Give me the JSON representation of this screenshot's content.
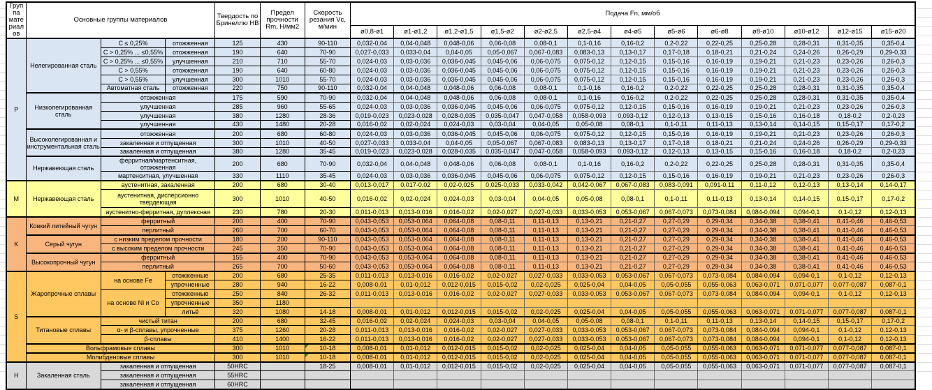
{
  "header": {
    "group": "Группа материалов",
    "materials": "Основные группы материалов",
    "hb": "Твердость по Бринеллю HB",
    "rm": "Предел прочности Rm, Н/мм2",
    "vc": "Скорость резания Vc, м/мин",
    "feed": "Подача Fn, мм/об",
    "feed_cols": [
      "ø0,8-ø1",
      "ø1-ø1,2",
      "ø1,2-ø1,5",
      "ø1,5-ø2",
      "ø2-ø2,5",
      "ø2,5-ø4",
      "ø4-ø5",
      "ø5-ø6",
      "ø6-ø8",
      "ø8-ø10",
      "ø10-ø12",
      "ø12-ø15",
      "ø15-ø20"
    ]
  },
  "colors": {
    "P": "#d9e5f2",
    "M": "#ffff9b",
    "K": "#f8b57e",
    "S": "#ffc75f",
    "H": "#d9d9d9",
    "flag_green": "#2e8b2e"
  },
  "feed_templates": {
    "A": [
      "0,032-0,04",
      "0,04-0,048",
      "0,048-0,06",
      "0,06-0,08",
      "0,08-0,1",
      "0,1-0,16",
      "0,16-0,2",
      "0,2-0,22",
      "0,22-0,25",
      "0,25-0,28",
      "0,28-0,31",
      "0,31-0,35",
      "0,35-0,4"
    ],
    "B": [
      "0,027-0,033",
      "0,033-0,04",
      "0,04-0,05",
      "0,05-0,067",
      "0,067-0,083",
      "0,083-0,13",
      "0,13-0,17",
      "0,17-0,18",
      "0,18-0,21",
      "0,21-0,24",
      "0,24-0,26",
      "0,26-0,29",
      "0,29-0,33"
    ],
    "C": [
      "0,024-0,03",
      "0,03-0,036",
      "0,036-0,045",
      "0,045-0,06",
      "0,06-0,075",
      "0,075-0,12",
      "0,12-0,15",
      "0,15-0,16",
      "0,16-0,19",
      "0,19-0,21",
      "0,21-0,23",
      "0,23-0,26",
      "0,26-0,3"
    ],
    "D": [
      "0,019-0,023",
      "0,023-0,028",
      "0,028-0,035",
      "0,035-0,047",
      "0,047-0,058",
      "0,058-0,093",
      "0,093-0,12",
      "0,12-0,13",
      "0,13-0,15",
      "0,15-0,16",
      "0,16-0,18",
      "0,18-0,2",
      "0,2-0,23"
    ],
    "E": [
      "0,016-0,02",
      "0,02-0,024",
      "0,024-0,03",
      "0,03-0,04",
      "0,04-0,05",
      "0,05-0,08",
      "0,08-0,1",
      "0,1-0,11",
      "0,11-0,13",
      "0,13-0,14",
      "0,14-0,15",
      "0,15-0,17",
      "0,17-0,2"
    ],
    "F": [
      "0,013-0,017",
      "0,017-0,02",
      "0,02-0,025",
      "0,025-0,033",
      "0,033-0,042",
      "0,042-0,067",
      "0,067-0,083",
      "0,083-0,091",
      "0,091-0,11",
      "0,11-0,12",
      "0,12-0,13",
      "0,13-0,14",
      "0,14-0,17"
    ],
    "G": [
      "0,011-0,013",
      "0,013-0,016",
      "0,016-0,02",
      "0,02-0,027",
      "0,027-0,033",
      "0,033-0,053",
      "0,053-0,067",
      "0,067-0,073",
      "0,073-0,084",
      "0,084-0,094",
      "0,094-0,1",
      "0,1-0,12",
      "0,12-0,13"
    ],
    "H": [
      "0,043-0,053",
      "0,053-0,064",
      "0,064-0,08",
      "0,08-0,11",
      "0,11-0,13",
      "0,13-0,21",
      "0,21-0,27",
      "0,27-0,29",
      "0,29-0,34",
      "0,34-0,38",
      "0,38-0,41",
      "0,41-0,46",
      "0,46-0,53"
    ],
    "I": [
      "0,008-0,01",
      "0,01-0,012",
      "0,012-0,015",
      "0,015-0,02",
      "0,02-0,025",
      "0,025-0,04",
      "0,04-0,05",
      "0,05-0,055",
      "0,055-0,063",
      "0,063-0,071",
      "0,071-0,077",
      "0,077-0,087",
      "0,087-0,1"
    ],
    "EMPTY": [
      "",
      "",
      "",
      "",
      "",
      "",
      "",
      "",
      "",
      "",
      "",
      "",
      ""
    ]
  },
  "sections": [
    {
      "id": "P",
      "rows": [
        {
          "labels": [
            [
              "Нелегированная сталь",
              "mat",
              6
            ],
            [
              "C ≤ 0,25%",
              "sub",
              1
            ],
            [
              "отожженная",
              "state",
              1
            ]
          ],
          "hb": "125",
          "rm": "430",
          "vc": "90-110",
          "feed": "A"
        },
        {
          "labels": [
            [
              "C > 0,25% ... ≤0,55%",
              "sub",
              1
            ],
            [
              "отожженная",
              "state",
              1
            ]
          ],
          "hb": "190",
          "rm": "640",
          "vc": "70-90",
          "feed": "B"
        },
        {
          "labels": [
            [
              "C > 0,25% ... ≤0,55%",
              "sub",
              1
            ],
            [
              "улучшенная",
              "state",
              1
            ]
          ],
          "hb": "210",
          "rm": "710",
          "vc": "55-70",
          "feed": "C"
        },
        {
          "labels": [
            [
              "C > 0,55%",
              "sub",
              1
            ],
            [
              "отожженная",
              "state",
              1
            ]
          ],
          "hb": "190",
          "rm": "640",
          "vc": "60-80",
          "feed": "C"
        },
        {
          "labels": [
            [
              "C > 0,55%",
              "sub",
              1
            ],
            [
              "улучшенная",
              "state",
              1
            ]
          ],
          "hb": "300",
          "rm": "1010",
          "vc": "55-70",
          "feed": "C"
        },
        {
          "labels": [
            [
              "Автоматная сталь",
              "sub",
              1
            ],
            [
              "отожженная",
              "state",
              1
            ]
          ],
          "hb": "220",
          "rm": "750",
          "vc": "90-110",
          "feed": "A"
        },
        {
          "labels": [
            [
              "Низколегированная сталь",
              "mat",
              4
            ],
            [
              "отожженная",
              "wide",
              1
            ]
          ],
          "hb": "175",
          "rm": "590",
          "vc": "70-90",
          "feed": "A"
        },
        {
          "labels": [
            [
              "улучшенная",
              "wide",
              1
            ]
          ],
          "hb": "285",
          "rm": "960",
          "vc": "55-65",
          "feed": "C"
        },
        {
          "labels": [
            [
              "улучшенная",
              "wide",
              1
            ]
          ],
          "hb": "380",
          "rm": "1280",
          "vc": "28-36",
          "feed": "D"
        },
        {
          "labels": [
            [
              "улучшенная",
              "wide",
              1
            ]
          ],
          "hb": "430",
          "rm": "1480",
          "vc": "20-28",
          "feed": "E"
        },
        {
          "labels": [
            [
              "Высоколегированная и инструментальная сталь",
              "mat",
              3
            ],
            [
              "отожженная",
              "wide",
              1
            ]
          ],
          "hb": "200",
          "rm": "680",
          "vc": "60-80",
          "feed": "C"
        },
        {
          "labels": [
            [
              "закаленная и отпущенная",
              "wide",
              1
            ]
          ],
          "hb": "300",
          "rm": "1010",
          "vc": "40-50",
          "feed": "B"
        },
        {
          "labels": [
            [
              "закаленная и отпущенная",
              "wide",
              1
            ]
          ],
          "hb": "380",
          "rm": "1280",
          "vc": "35-45",
          "feed": "D"
        },
        {
          "labels": [
            [
              "Нержавеющая сталь",
              "mat",
              2
            ],
            [
              "ферритная/мартенситная, отожженная",
              "wide",
              1
            ]
          ],
          "hb": "200",
          "rm": "680",
          "vc": "70-90",
          "feed": "A"
        },
        {
          "labels": [
            [
              "мартенситная, улучшенная",
              "wide",
              1
            ]
          ],
          "hb": "330",
          "rm": "1110",
          "vc": "35-45",
          "feed": "C"
        }
      ]
    },
    {
      "id": "M",
      "rows": [
        {
          "labels": [
            [
              "Нержавеющая сталь",
              "mat",
              3
            ],
            [
              "аустенитная, закаленная",
              "wide",
              1
            ]
          ],
          "hb": "200",
          "rm": "680",
          "vc": "30-40",
          "feed": "F"
        },
        {
          "labels": [
            [
              "аустенитная, дисперсионно твердеющая",
              "wide",
              1
            ]
          ],
          "hb": "300",
          "rm": "1010",
          "vc": "40-50",
          "feed": "E",
          "tall": true
        },
        {
          "labels": [
            [
              "аустенитно-ферритная, дуплексная",
              "wide",
              1
            ]
          ],
          "hb": "230",
          "rm": "780",
          "vc": "20-30",
          "feed": "G"
        }
      ]
    },
    {
      "id": "K",
      "rows": [
        {
          "labels": [
            [
              "Ковкий литейный чугун",
              "mat",
              2
            ],
            [
              "ферритный",
              "wide",
              1
            ]
          ],
          "hb": "200",
          "rm": "400",
          "vc": "70-90",
          "feed": "H"
        },
        {
          "labels": [
            [
              "перлитный",
              "wide",
              1
            ]
          ],
          "hb": "260",
          "rm": "700",
          "vc": "60-70",
          "feed": "H"
        },
        {
          "labels": [
            [
              "Серый чугун",
              "mat",
              2
            ],
            [
              "с низким пределом прочности",
              "wide",
              1
            ]
          ],
          "hb": "180",
          "rm": "200",
          "vc": "90-110",
          "feed": "H"
        },
        {
          "labels": [
            [
              "с высоким пределом прочности",
              "wide",
              1
            ]
          ],
          "hb": "245",
          "rm": "350",
          "vc": "70-90",
          "feed": "H"
        },
        {
          "labels": [
            [
              "Высокопрочный чугун",
              "mat",
              2
            ],
            [
              "ферритный",
              "wide",
              1
            ]
          ],
          "hb": "155",
          "rm": "400",
          "vc": "70-90",
          "feed": "H"
        },
        {
          "labels": [
            [
              "перлитный",
              "wide",
              1
            ]
          ],
          "hb": "265",
          "rm": "700",
          "vc": "50-60",
          "feed": "H"
        }
      ]
    },
    {
      "id": "S",
      "rows": [
        {
          "labels": [
            [
              "Жаропрочные сплавы",
              "mat",
              5
            ],
            [
              "на основе Fe",
              "sub",
              2
            ],
            [
              "отожженные",
              "state",
              1
            ]
          ],
          "hb": "200",
          "rm": "680",
          "vc": "25-35",
          "feed": "G"
        },
        {
          "labels": [
            [
              "упрочненные",
              "state",
              1
            ]
          ],
          "hb": "280",
          "rm": "940",
          "vc": "16-22",
          "feed": "I"
        },
        {
          "labels": [
            [
              "на основе Ni и Co",
              "sub",
              3
            ],
            [
              "отожженные",
              "state",
              1
            ]
          ],
          "hb": "250",
          "rm": "840",
          "vc": "26-32",
          "feed": "G"
        },
        {
          "labels": [
            [
              "упрочненные",
              "state",
              1
            ]
          ],
          "hb": "350",
          "rm": "1180",
          "vc": "",
          "feed": "EMPTY"
        },
        {
          "labels": [
            [
              "литьё",
              "state",
              1
            ]
          ],
          "hb": "320",
          "rm": "1080",
          "vc": "14-18",
          "feed": "I"
        },
        {
          "labels": [
            [
              "Титановые сплавы",
              "mat",
              3
            ],
            [
              "чистый титан",
              "wide",
              1
            ]
          ],
          "hb": "200",
          "rm": "680",
          "vc": "32-45",
          "feed": "E"
        },
        {
          "labels": [
            [
              "α- и β-сплавы, упрочненные",
              "wide",
              1
            ]
          ],
          "hb": "375",
          "rm": "1260",
          "vc": "20-28",
          "feed": "G"
        },
        {
          "labels": [
            [
              "β-сплавы",
              "wide",
              1
            ]
          ],
          "hb": "410",
          "rm": "1400",
          "vc": "16-22",
          "feed": "G"
        },
        {
          "labels": [
            [
              "Вольфрамовые сплавы",
              "matwide",
              1
            ]
          ],
          "hb": "300",
          "rm": "1010",
          "vc": "10-18",
          "feed": "I",
          "flag": true
        },
        {
          "labels": [
            [
              "Молибденовые сплавы",
              "matwide",
              1
            ]
          ],
          "hb": "300",
          "rm": "1010",
          "vc": "10-18",
          "feed": "I",
          "flag": true
        }
      ]
    },
    {
      "id": "H",
      "rows": [
        {
          "labels": [
            [
              "Закаленная сталь",
              "mat",
              3
            ],
            [
              "закаленная и отпущенная",
              "wide",
              1
            ]
          ],
          "hb": "50HRC",
          "rm": "",
          "vc": "18-25",
          "feed": "I"
        },
        {
          "labels": [
            [
              "закаленная и отпущенная",
              "wide",
              1
            ]
          ],
          "hb": "55HRC",
          "rm": "",
          "vc": "",
          "feed": "EMPTY"
        },
        {
          "labels": [
            [
              "закаленная и отпущенная",
              "wide",
              1
            ]
          ],
          "hb": "60HRC",
          "rm": "",
          "vc": "",
          "feed": "EMPTY"
        }
      ]
    }
  ]
}
